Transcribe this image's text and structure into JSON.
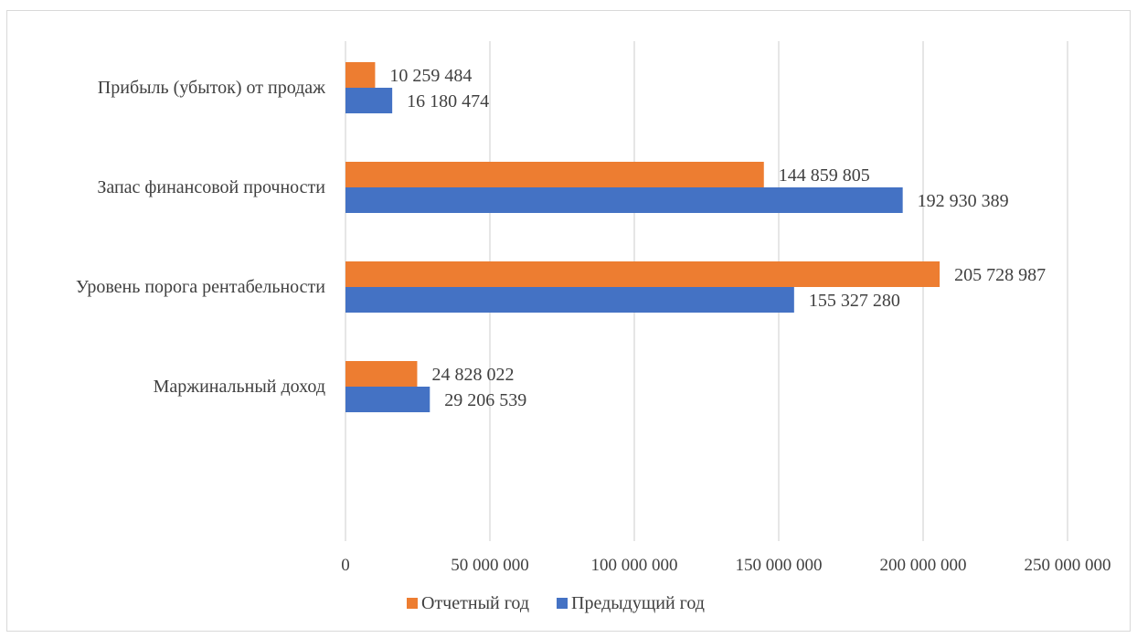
{
  "chart_data": {
    "type": "bar",
    "orientation": "horizontal",
    "categories": [
      "Прибыль (убыток) от продаж",
      "Запас финансовой прочности",
      "Уровень порога рентабельности",
      "Маржинальный доход"
    ],
    "series": [
      {
        "name": "Отчетный год",
        "color": "#ed7d31",
        "values": [
          10259484,
          144859805,
          205728987,
          24828022
        ],
        "labels": [
          "10 259 484",
          "144 859 805",
          "205 728 987",
          "24 828 022"
        ]
      },
      {
        "name": "Предыдущий год",
        "color": "#4472c4",
        "values": [
          16180474,
          192930389,
          155327280,
          29206539
        ],
        "labels": [
          "16 180 474",
          "192 930 389",
          "155 327 280",
          "29 206 539"
        ]
      }
    ],
    "xlim": [
      0,
      250000000
    ],
    "xticks": [
      0,
      50000000,
      100000000,
      150000000,
      200000000,
      250000000
    ],
    "xtick_labels": [
      "0",
      "50 000 000",
      "100 000 000",
      "150 000 000",
      "200 000 000",
      "250 000 000"
    ],
    "grid": "vertical",
    "legend": "bottom",
    "title": "",
    "xlabel": "",
    "ylabel": ""
  }
}
